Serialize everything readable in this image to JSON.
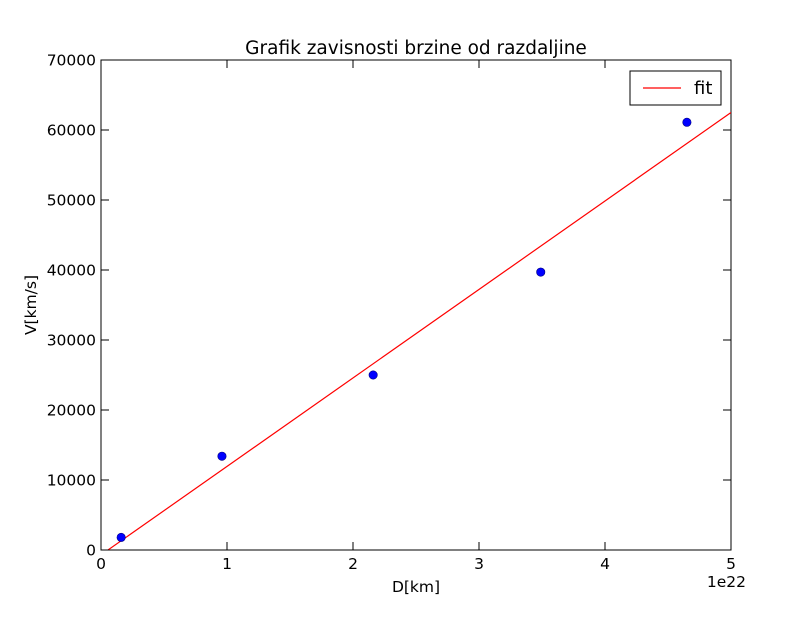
{
  "chart_data": {
    "type": "scatter",
    "title": "Grafik zavisnosti brzine od razdaljine",
    "xlabel": "D[km]",
    "ylabel": "V[km/s]",
    "x_offset_label": "1e22",
    "xlim": [
      0,
      5
    ],
    "ylim": [
      0,
      70000
    ],
    "x_ticks": [
      "0",
      "1",
      "2",
      "3",
      "4",
      "5"
    ],
    "y_ticks": [
      "0",
      "10000",
      "20000",
      "30000",
      "40000",
      "50000",
      "60000",
      "70000"
    ],
    "grid": false,
    "legend_position": "top-right",
    "series": [
      {
        "kind": "points",
        "color": "#0000ff",
        "x": [
          0.16,
          0.96,
          2.16,
          3.49,
          4.65
        ],
        "y": [
          1800,
          13400,
          25000,
          39700,
          61100
        ]
      },
      {
        "name": "fit",
        "kind": "line",
        "color": "#ff0000",
        "x": [
          0.0,
          5.0
        ],
        "y": [
          -700,
          62500
        ]
      }
    ]
  }
}
